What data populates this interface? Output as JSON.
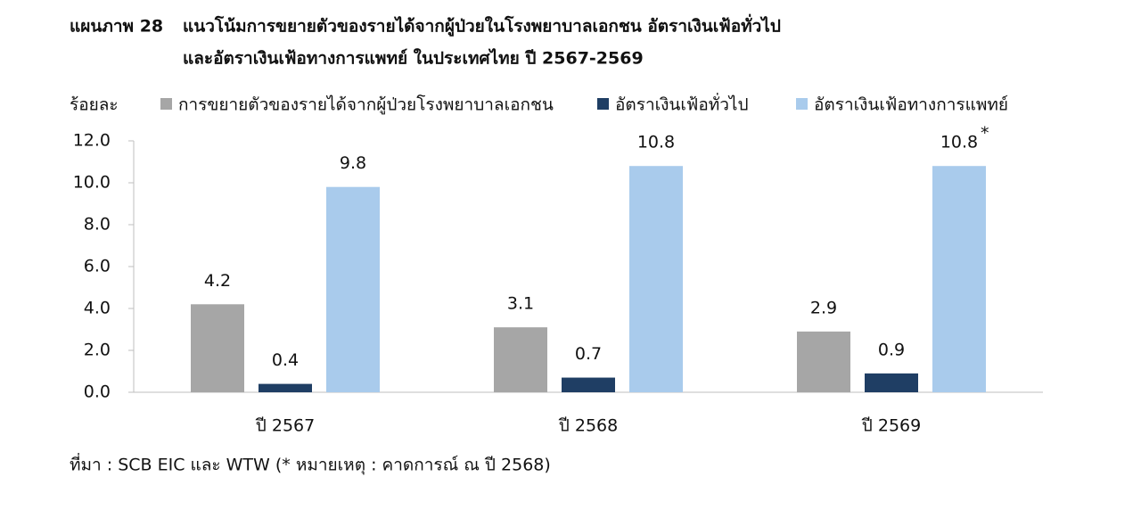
{
  "chart_data": {
    "type": "bar",
    "figure_label": "แผนภาพ  28",
    "title": [
      "แนวโน้มการขยายตัวของรายได้จากผู้ป่วยในโรงพยาบาลเอกชน อัตราเงินเฟ้อทั่วไป",
      "และอัตราเงินเฟ้อทางการแพทย์ ในประเทศไทย ปี 2567-2569"
    ],
    "y_label": "ร้อยละ",
    "categories": [
      "ปี 2567",
      "ปี 2568",
      "ปี 2569"
    ],
    "series": [
      {
        "name": "การขยายตัวของรายได้จากผู้ป่วยโรงพยาบาลเอกชน",
        "color": "#a6a6a6",
        "values": [
          4.2,
          3.1,
          2.9
        ]
      },
      {
        "name": "อัตราเงินเฟ้อทั่วไป",
        "color": "#1f3e64",
        "values": [
          0.4,
          0.7,
          0.9
        ]
      },
      {
        "name": "อัตราเงินเฟ้อทางการแพทย์",
        "color": "#a9cbec",
        "values": [
          9.8,
          10.8,
          10.8
        ]
      }
    ],
    "annotations": [
      {
        "text": "*",
        "series": 2,
        "index": 2
      }
    ],
    "ylim": [
      0,
      12
    ],
    "yticks": [
      {
        "value": 0,
        "label": "0.0"
      },
      {
        "value": 2,
        "label": "2.0"
      },
      {
        "value": 4,
        "label": "4.0"
      },
      {
        "value": 6,
        "label": "6.0"
      },
      {
        "value": 8,
        "label": "8.0"
      },
      {
        "value": 10,
        "label": "10.0"
      },
      {
        "value": 12,
        "label": "12.0"
      }
    ],
    "source": "ที่มา : SCB EIC และ WTW (* หมายเหตุ : คาดการณ์ ณ ปี 2568)"
  }
}
